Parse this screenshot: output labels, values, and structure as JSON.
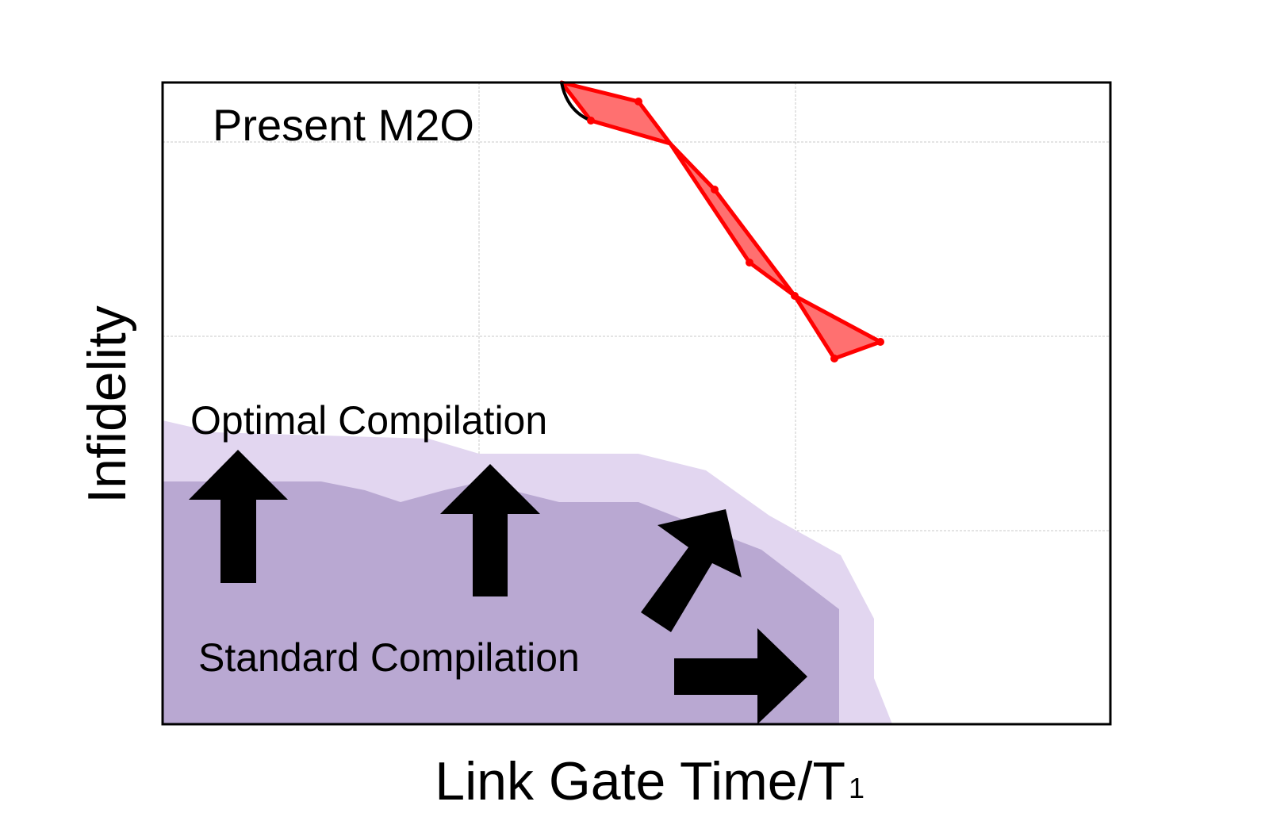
{
  "annotations": {
    "present": "Present M2O",
    "optimal": "Optimal Compilation",
    "standard": "Standard Compilation"
  },
  "axes": {
    "y_label": "Infidelity",
    "x_label": {
      "text": "Link Gate Time/T",
      "subscript": "1"
    }
  }
}
